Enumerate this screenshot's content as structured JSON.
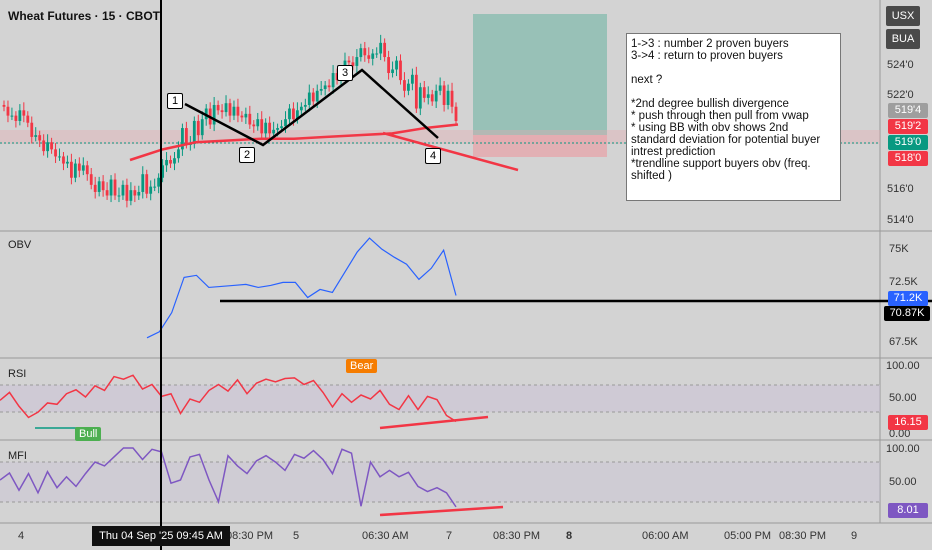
{
  "header": {
    "title": "Wheat Futures · 15 · CBOT",
    "currency": "USX",
    "unit": "BUA"
  },
  "note": "1->3 : number 2 proven buyers\n3->4 : return to proven buyers\n\nnext ?\n\n*2nd degree bullish divergence\n* push through then pull from vwap\n* using BB with obv shows 2nd standard deviation for potential buyer intrest prediction\n*trendline support buyers obv (freq. shifted )",
  "price_axis": [
    "524'0",
    "522'0",
    "516'0",
    "514'0"
  ],
  "price_tags": [
    {
      "text": "519'4",
      "color": "#9e9e9e"
    },
    {
      "text": "519'2",
      "color": "#f23645"
    },
    {
      "text": "519'0",
      "color": "#089981"
    },
    {
      "text": "518'0",
      "color": "#f23645"
    }
  ],
  "obv": {
    "label": "OBV",
    "ticks": [
      "75K",
      "72.5K",
      "67.5K"
    ],
    "value_tag": "71.2K",
    "line_tag": "70.87K"
  },
  "rsi": {
    "label": "RSI",
    "ticks": [
      "100.00",
      "50.00",
      "0.00"
    ],
    "value_tag": "16.15",
    "bull": "Bull",
    "bear": "Bear"
  },
  "mfi": {
    "label": "MFI",
    "ticks": [
      "100.00",
      "50.00"
    ],
    "value_tag": "8.01"
  },
  "time_axis": [
    "4",
    "08:30 PM",
    "5",
    "06:30 AM",
    "7",
    "08:30 PM",
    "8",
    "06:00 AM",
    "05:00 PM",
    "08:30 PM",
    "9"
  ],
  "crosshair_date": "Thu 04 Sep '25   09:45 AM",
  "markers": [
    "1",
    "2",
    "3",
    "4"
  ],
  "colors": {
    "up": "#089981",
    "down": "#f23645",
    "obv": "#2962ff",
    "rsi": "#f23645",
    "mfi": "#7e57c2",
    "target": "#7fb3a8"
  },
  "chart_data": [
    {
      "type": "candlestick",
      "title": "Wheat Futures · 15 · CBOT",
      "ylabel": "USX/BUA",
      "ylim": [
        513.5,
        525.5
      ],
      "close": [
        520.5,
        520.0,
        520.0,
        519.7,
        520.3,
        520.0,
        519.6,
        518.8,
        518.9,
        518.6,
        518.0,
        518.5,
        518.1,
        517.7,
        517.7,
        517.3,
        517.4,
        516.5,
        517.3,
        516.9,
        517.2,
        516.7,
        516.1,
        515.7,
        516.3,
        515.8,
        515.5,
        516.4,
        515.5,
        515.5,
        516.1,
        515.2,
        515.8,
        515.5,
        515.7,
        516.7,
        515.6,
        516.0,
        516.0,
        516.5,
        517.2,
        517.5,
        517.3,
        517.6,
        518.1,
        519.3,
        518.4,
        518.4,
        519.7,
        518.9,
        519.8,
        520.4,
        519.5,
        520.6,
        520.3,
        520.2,
        520.7,
        520.0,
        520.5,
        520.0,
        519.9,
        520.1,
        519.5,
        519.4,
        519.8,
        519.0,
        519.6,
        519.0,
        519.2,
        519.3,
        519.4,
        519.8,
        520.4,
        519.8,
        520.3,
        520.5,
        520.6,
        521.3,
        520.8,
        521.4,
        521.5,
        521.7,
        521.6,
        522.4,
        522.0,
        522.3,
        523.1,
        523.0,
        522.8,
        523.3,
        523.8,
        523.4,
        523.2,
        523.5,
        523.5,
        524.1,
        523.3,
        522.4,
        522.6,
        523.1,
        522.0,
        521.4,
        521.8,
        522.3,
        520.4,
        521.6,
        521.0,
        521.2,
        520.8,
        521.4,
        521.7,
        520.6,
        521.4,
        520.5,
        519.7
      ],
      "vwap": [
        517.5,
        518.1,
        518.5,
        518.6,
        518.7,
        518.7,
        518.8,
        518.9,
        519.0,
        519.3,
        519.5
      ]
    },
    {
      "type": "line",
      "name": "OBV",
      "ylim": [
        65000,
        77500
      ],
      "values": [
        67000,
        67600,
        69500,
        73000,
        73200,
        72000,
        72100,
        72200,
        72300,
        72000,
        72200,
        72500,
        72500,
        71000,
        71800,
        71500,
        73500,
        75500,
        76900,
        75800,
        75000,
        74300,
        72800,
        73900,
        75700,
        71200
      ]
    },
    {
      "type": "line",
      "name": "RSI",
      "ylim": [
        0,
        100
      ],
      "values": [
        48,
        60,
        39,
        22,
        30,
        44,
        42,
        58,
        64,
        53,
        70,
        63,
        84,
        80,
        86,
        65,
        72,
        54,
        58,
        28,
        50,
        45,
        63,
        72,
        62,
        79,
        58,
        74,
        80,
        76,
        81,
        82,
        72,
        78,
        60,
        38,
        58,
        45,
        56,
        50,
        63,
        42,
        34,
        55,
        34,
        54,
        49,
        25,
        16
      ]
    },
    {
      "type": "line",
      "name": "MFI",
      "ylim": [
        0,
        100
      ],
      "values": [
        50,
        61,
        34,
        60,
        30,
        63,
        38,
        55,
        40,
        60,
        78,
        72,
        86,
        100,
        100,
        82,
        98,
        94,
        45,
        50,
        86,
        90,
        50,
        16,
        88,
        72,
        60,
        80,
        88,
        78,
        65,
        90,
        84,
        96,
        82,
        60,
        98,
        92,
        9,
        78,
        55,
        65,
        55,
        62,
        40,
        32,
        38,
        30,
        8
      ]
    }
  ]
}
